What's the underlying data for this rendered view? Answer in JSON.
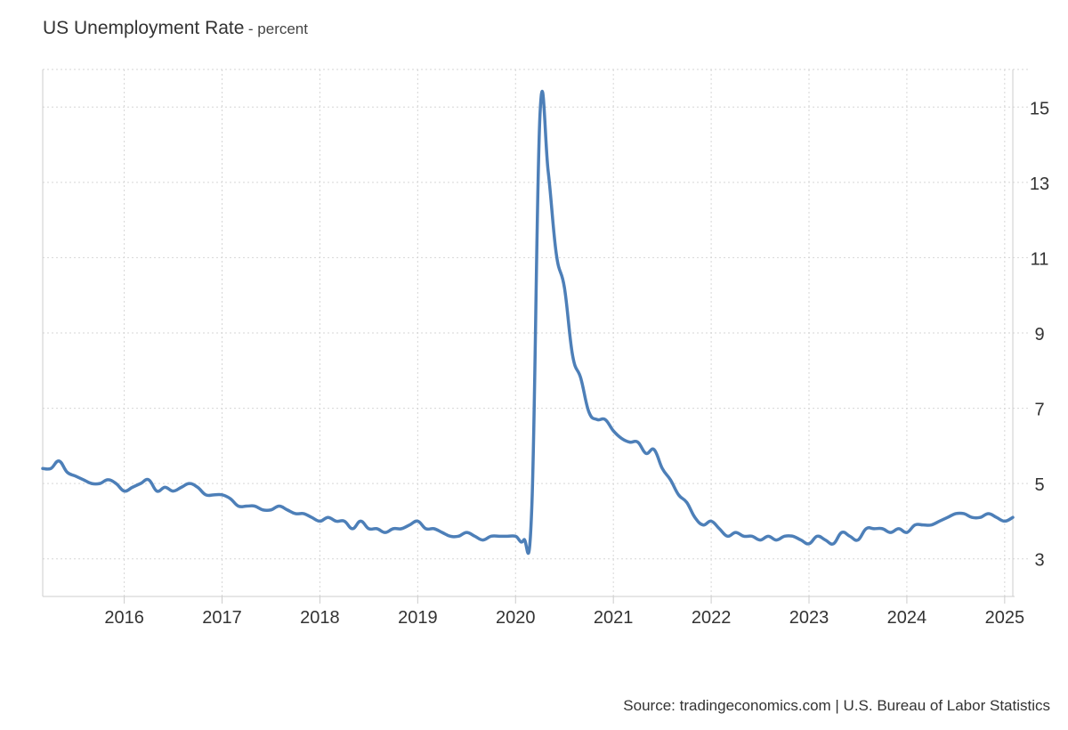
{
  "chart_data": {
    "type": "line",
    "title": "US Unemployment Rate",
    "title_unit": "percent",
    "xlabel": "",
    "ylabel": "",
    "xlim": [
      "2015-03",
      "2025-02"
    ],
    "ylim": [
      2,
      16
    ],
    "y_ticks": [
      "3",
      "5",
      "7",
      "9",
      "11",
      "13",
      "15"
    ],
    "x_ticks": [
      "2016",
      "2017",
      "2018",
      "2019",
      "2020",
      "2021",
      "2022",
      "2023",
      "2024",
      "2025"
    ],
    "grid": true,
    "y_axis_position": "right",
    "line_color": "#4d7fb8",
    "series": [
      {
        "x": [
          "2015-03",
          "2015-04",
          "2015-05",
          "2015-06",
          "2015-07",
          "2015-08",
          "2015-09",
          "2015-10",
          "2015-11",
          "2015-12",
          "2016-01",
          "2016-02",
          "2016-03",
          "2016-04",
          "2016-05",
          "2016-06",
          "2016-07",
          "2016-08",
          "2016-09",
          "2016-10",
          "2016-11",
          "2016-12",
          "2017-01",
          "2017-02",
          "2017-03",
          "2017-04",
          "2017-05",
          "2017-06",
          "2017-07",
          "2017-08",
          "2017-09",
          "2017-10",
          "2017-11",
          "2017-12",
          "2018-01",
          "2018-02",
          "2018-03",
          "2018-04",
          "2018-05",
          "2018-06",
          "2018-07",
          "2018-08",
          "2018-09",
          "2018-10",
          "2018-11",
          "2018-12",
          "2019-01",
          "2019-02",
          "2019-03",
          "2019-04",
          "2019-05",
          "2019-06",
          "2019-07",
          "2019-08",
          "2019-09",
          "2019-10",
          "2019-11",
          "2019-12",
          "2020-01",
          "2020-02",
          "2020-03",
          "2020-04",
          "2020-05",
          "2020-06",
          "2020-07",
          "2020-08",
          "2020-09",
          "2020-10",
          "2020-11",
          "2020-12",
          "2021-01",
          "2021-02",
          "2021-03",
          "2021-04",
          "2021-05",
          "2021-06",
          "2021-07",
          "2021-08",
          "2021-09",
          "2021-10",
          "2021-11",
          "2021-12",
          "2022-01",
          "2022-02",
          "2022-03",
          "2022-04",
          "2022-05",
          "2022-06",
          "2022-07",
          "2022-08",
          "2022-09",
          "2022-10",
          "2022-11",
          "2022-12",
          "2023-01",
          "2023-02",
          "2023-03",
          "2023-04",
          "2023-05",
          "2023-06",
          "2023-07",
          "2023-08",
          "2023-09",
          "2023-10",
          "2023-11",
          "2023-12",
          "2024-01",
          "2024-02",
          "2024-03",
          "2024-04",
          "2024-05",
          "2024-06",
          "2024-07",
          "2024-08",
          "2024-09",
          "2024-10",
          "2024-11",
          "2024-12",
          "2025-01",
          "2025-02"
        ],
        "values": [
          5.4,
          5.4,
          5.6,
          5.3,
          5.2,
          5.1,
          5.0,
          5.0,
          5.1,
          5.0,
          4.8,
          4.9,
          5.0,
          5.1,
          4.8,
          4.9,
          4.8,
          4.9,
          5.0,
          4.9,
          4.7,
          4.7,
          4.7,
          4.6,
          4.4,
          4.4,
          4.4,
          4.3,
          4.3,
          4.4,
          4.3,
          4.2,
          4.2,
          4.1,
          4.0,
          4.1,
          4.0,
          4.0,
          3.8,
          4.0,
          3.8,
          3.8,
          3.7,
          3.8,
          3.8,
          3.9,
          4.0,
          3.8,
          3.8,
          3.7,
          3.6,
          3.6,
          3.7,
          3.6,
          3.5,
          3.6,
          3.6,
          3.6,
          3.6,
          3.5,
          4.4,
          14.8,
          13.3,
          11.1,
          10.2,
          8.4,
          7.8,
          6.9,
          6.7,
          6.7,
          6.4,
          6.2,
          6.1,
          6.1,
          5.8,
          5.9,
          5.4,
          5.1,
          4.7,
          4.5,
          4.1,
          3.9,
          4.0,
          3.8,
          3.6,
          3.7,
          3.6,
          3.6,
          3.5,
          3.6,
          3.5,
          3.6,
          3.6,
          3.5,
          3.4,
          3.6,
          3.5,
          3.4,
          3.7,
          3.6,
          3.5,
          3.8,
          3.8,
          3.8,
          3.7,
          3.8,
          3.7,
          3.9,
          3.9,
          3.9,
          4.0,
          4.1,
          4.2,
          4.2,
          4.1,
          4.1,
          4.2,
          4.1,
          4.0,
          4.1
        ]
      }
    ]
  },
  "footer": {
    "source": "Source: tradingeconomics.com | U.S. Bureau of Labor Statistics"
  }
}
